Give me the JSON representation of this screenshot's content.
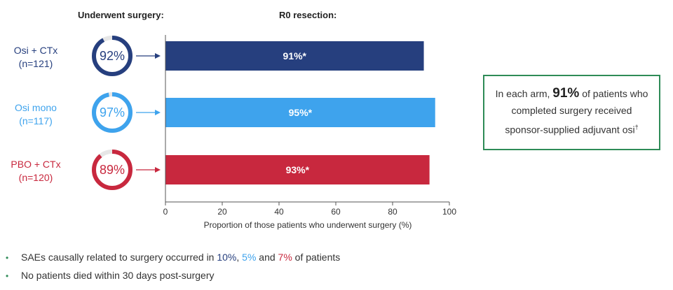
{
  "headers": {
    "surgery": "Underwent surgery:",
    "r0": "R0 resection:"
  },
  "arms": [
    {
      "name": "Osi + CTx",
      "n": "(n=121)",
      "surgery_pct": 92,
      "surgery_label": "92%",
      "color": "#263f7e"
    },
    {
      "name": "Osi mono",
      "n": "(n=117)",
      "surgery_pct": 97,
      "surgery_label": "97%",
      "color": "#3ea3ed"
    },
    {
      "name": "PBO + CTx",
      "n": "(n=120)",
      "surgery_pct": 89,
      "surgery_label": "89%",
      "color": "#c8283e"
    }
  ],
  "chart_data": {
    "type": "bar",
    "orientation": "horizontal",
    "categories": [
      "Osi + CTx",
      "Osi mono",
      "PBO + CTx"
    ],
    "values": [
      91,
      95,
      93
    ],
    "data_labels": [
      "91%*",
      "95%*",
      "93%*"
    ],
    "colors": [
      "#263f7e",
      "#3ea3ed",
      "#c8283e"
    ],
    "xlabel": "Proportion of those patients who underwent surgery (%)",
    "xlim": [
      0,
      100
    ],
    "xticks": [
      0,
      20,
      40,
      60,
      80,
      100
    ],
    "grid": false
  },
  "callout": {
    "pre": "In each arm, ",
    "highlight": "91%",
    "post1": " of patients who",
    "line2": "completed surgery received",
    "line3": "sponsor-supplied adjuvant osi",
    "sup": "†"
  },
  "bullets": {
    "b1_pre": "SAEs causally related to surgery occurred in ",
    "b1_v1": "10%",
    "b1_sep1": ", ",
    "b1_v2": "5%",
    "b1_sep2": " and ",
    "b1_v3": "7%",
    "b1_post": " of patients",
    "b2": "No patients died within 30 days post-surgery",
    "dot": "•"
  }
}
